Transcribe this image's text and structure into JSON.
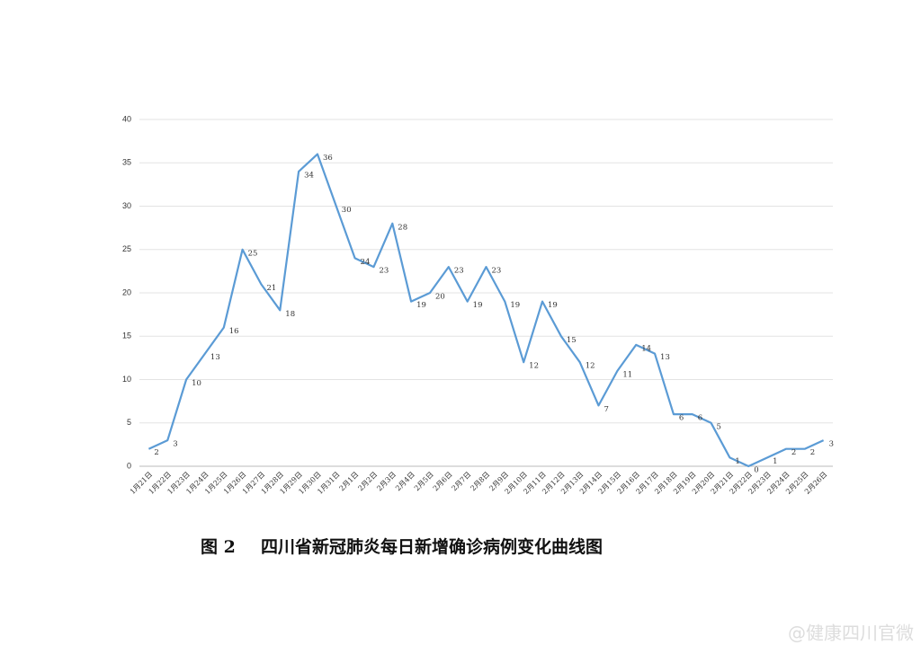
{
  "chart_data": {
    "type": "line",
    "figure_label": "图 2",
    "title": "四川省新冠肺炎每日新增确诊病例变化曲线图",
    "categories": [
      "1月21日",
      "1月22日",
      "1月23日",
      "1月24日",
      "1月25日",
      "1月26日",
      "1月27日",
      "1月28日",
      "1月29日",
      "1月30日",
      "1月31日",
      "2月1日",
      "2月2日",
      "2月3日",
      "2月4日",
      "2月5日",
      "2月6日",
      "2月7日",
      "2月8日",
      "2月9日",
      "2月10日",
      "2月11日",
      "2月12日",
      "2月13日",
      "2月14日",
      "2月15日",
      "2月16日",
      "2月17日",
      "2月18日",
      "2月19日",
      "2月20日",
      "2月21日",
      "2月22日",
      "2月23日",
      "2月24日",
      "2月25日",
      "2月26日"
    ],
    "values": [
      2,
      3,
      10,
      13,
      16,
      25,
      21,
      18,
      34,
      36,
      30,
      24,
      23,
      28,
      19,
      20,
      23,
      19,
      23,
      19,
      12,
      19,
      15,
      12,
      7,
      11,
      14,
      13,
      6,
      6,
      5,
      1,
      0,
      1,
      2,
      2,
      3
    ],
    "color": "#5b9bd5",
    "ylim": [
      0,
      40
    ],
    "yticks": [
      0,
      5,
      10,
      15,
      20,
      25,
      30,
      35,
      40
    ],
    "grid": true
  },
  "watermark": "@健康四川官微"
}
